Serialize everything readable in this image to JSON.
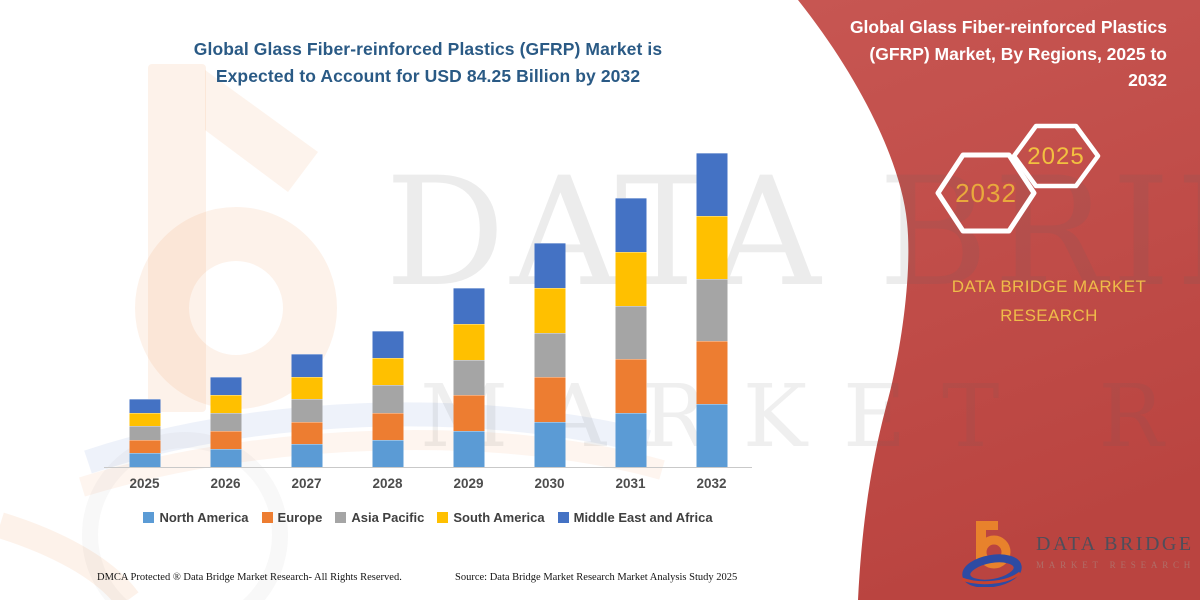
{
  "left_section": {
    "title_lines": [
      "Global Glass Fiber-reinforced Plastics (GFRP) Market is",
      "Expected to Account for USD 84.25 Billion by 2032"
    ],
    "footer": {
      "dmca_text": "DMCA Protected ® Data Bridge Market Research-  All Rights Reserved.",
      "source_text": "Source: Data Bridge Market Research  Market Analysis Study 2025"
    }
  },
  "right_panel": {
    "title_lines": [
      "Global Glass Fiber-reinforced Plastics",
      "(GFRP) Market, By Regions, 2025 to",
      "2032"
    ],
    "hexagon_large_label": "2032",
    "hexagon_small_label": "2025",
    "brand_text_lines": [
      "DATA BRIDGE MARKET",
      "RESEARCH"
    ],
    "logo": {
      "name_text": "DATA BRIDGE",
      "subtitle_text": "MARKET RESEARCH"
    },
    "background_color": "#C4514D",
    "accent_text_color": "#EFBC49"
  },
  "watermark": {
    "line1": "DATA BRIDGE",
    "line2": "MARKET RESEARCH"
  },
  "chart_data": {
    "type": "bar",
    "stacked": true,
    "title": "Global Glass Fiber-reinforced Plastics (GFRP) Market is Expected to Account for USD 84.25 Billion by 2032",
    "unit": "USD Billion",
    "categories": [
      "2025",
      "2026",
      "2027",
      "2028",
      "2029",
      "2030",
      "2031",
      "2032"
    ],
    "series": [
      {
        "name": "North America",
        "color": "#5B9BD5",
        "values": [
          3.64,
          4.82,
          6.06,
          7.3,
          9.6,
          12.02,
          14.44,
          16.85
        ]
      },
      {
        "name": "Europe",
        "color": "#ED7D31",
        "values": [
          3.64,
          4.82,
          6.06,
          7.3,
          9.6,
          12.02,
          14.44,
          16.85
        ]
      },
      {
        "name": "Asia Pacific",
        "color": "#A5A5A5",
        "values": [
          3.64,
          4.82,
          6.06,
          7.3,
          9.6,
          12.02,
          14.44,
          16.85
        ]
      },
      {
        "name": "South America",
        "color": "#FFC000",
        "values": [
          3.64,
          4.82,
          6.06,
          7.3,
          9.6,
          12.02,
          14.44,
          16.85
        ]
      },
      {
        "name": "Middle East and Africa",
        "color": "#4472C4",
        "values": [
          3.64,
          4.82,
          6.06,
          7.3,
          9.6,
          12.02,
          14.44,
          16.85
        ]
      }
    ],
    "totals": [
      18.2,
      24.1,
      30.3,
      36.5,
      48.0,
      60.1,
      72.2,
      84.25
    ],
    "ylim": [
      0,
      88
    ],
    "xlabel": "",
    "ylabel": "",
    "grid": false,
    "y_axis_hidden": true,
    "legend_position": "bottom"
  }
}
